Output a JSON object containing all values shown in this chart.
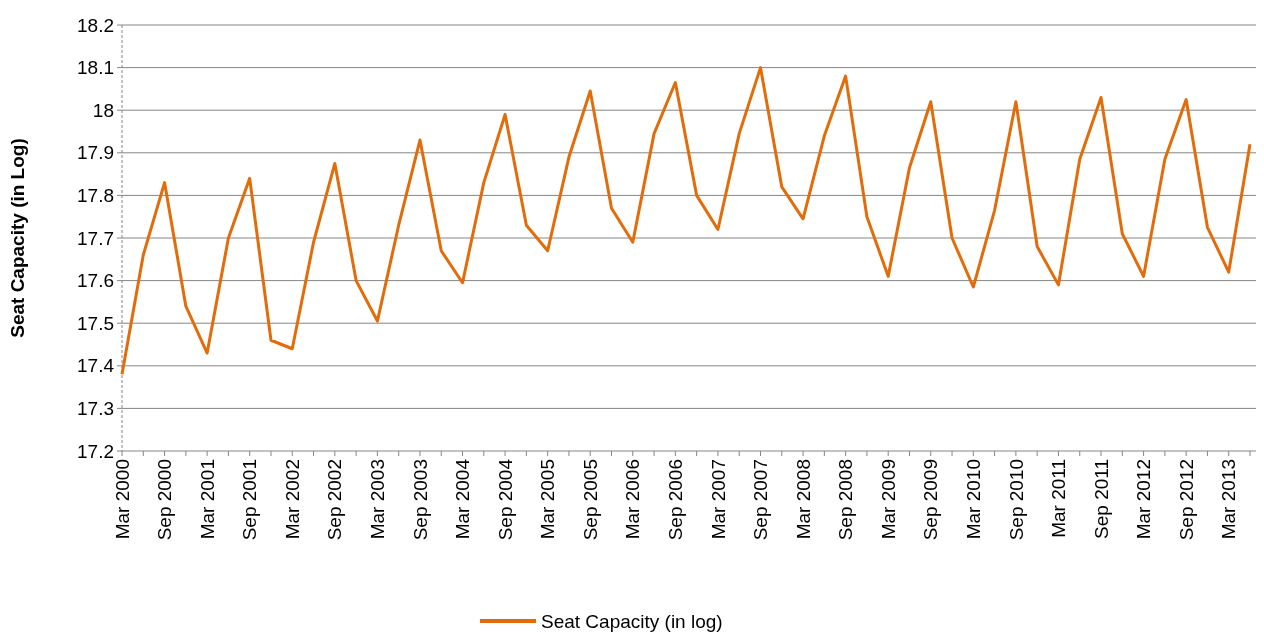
{
  "chart_data": {
    "type": "line",
    "ylabel": "Seat Capacity (in Log)",
    "categories": [
      "Mar 2000",
      null,
      "Sep 2000",
      null,
      "Mar 2001",
      null,
      "Sep 2001",
      null,
      "Mar 2002",
      null,
      "Sep 2002",
      null,
      "Mar 2003",
      null,
      "Sep 2003",
      null,
      "Mar 2004",
      null,
      "Sep 2004",
      null,
      "Mar 2005",
      null,
      "Sep 2005",
      null,
      "Mar 2006",
      null,
      "Sep 2006",
      null,
      "Mar 2007",
      null,
      "Sep 2007",
      null,
      "Mar 2008",
      null,
      "Sep 2008",
      null,
      "Mar 2009",
      null,
      "Sep 2009",
      null,
      "Mar 2010",
      null,
      "Sep 2010",
      null,
      "Mar 2011",
      null,
      "Sep 2011",
      null,
      "Mar 2012",
      null,
      "Sep 2012",
      null,
      "Mar 2013",
      null
    ],
    "series": [
      {
        "name": "Seat Capacity (in log)",
        "color": "#e36c0a",
        "values": [
          17.38,
          17.66,
          17.83,
          17.54,
          17.43,
          17.7,
          17.84,
          17.46,
          17.44,
          17.69,
          17.875,
          17.6,
          17.505,
          17.73,
          17.93,
          17.67,
          17.595,
          17.83,
          17.99,
          17.73,
          17.67,
          17.89,
          18.045,
          17.77,
          17.69,
          17.945,
          18.065,
          17.8,
          17.72,
          17.945,
          18.1,
          17.82,
          17.745,
          17.94,
          18.08,
          17.75,
          17.61,
          17.865,
          18.02,
          17.7,
          17.585,
          17.765,
          18.02,
          17.68,
          17.59,
          17.885,
          18.03,
          17.71,
          17.61,
          17.885,
          18.025,
          17.725,
          17.62,
          17.92
        ]
      }
    ],
    "ylim": [
      17.2,
      18.2
    ],
    "yticks": [
      17.2,
      17.3,
      17.4,
      17.5,
      17.6,
      17.7,
      17.8,
      17.9,
      18,
      18.1,
      18.2
    ],
    "grid": "y",
    "legend": "bottom",
    "marker": "none",
    "line_style": "solid"
  }
}
